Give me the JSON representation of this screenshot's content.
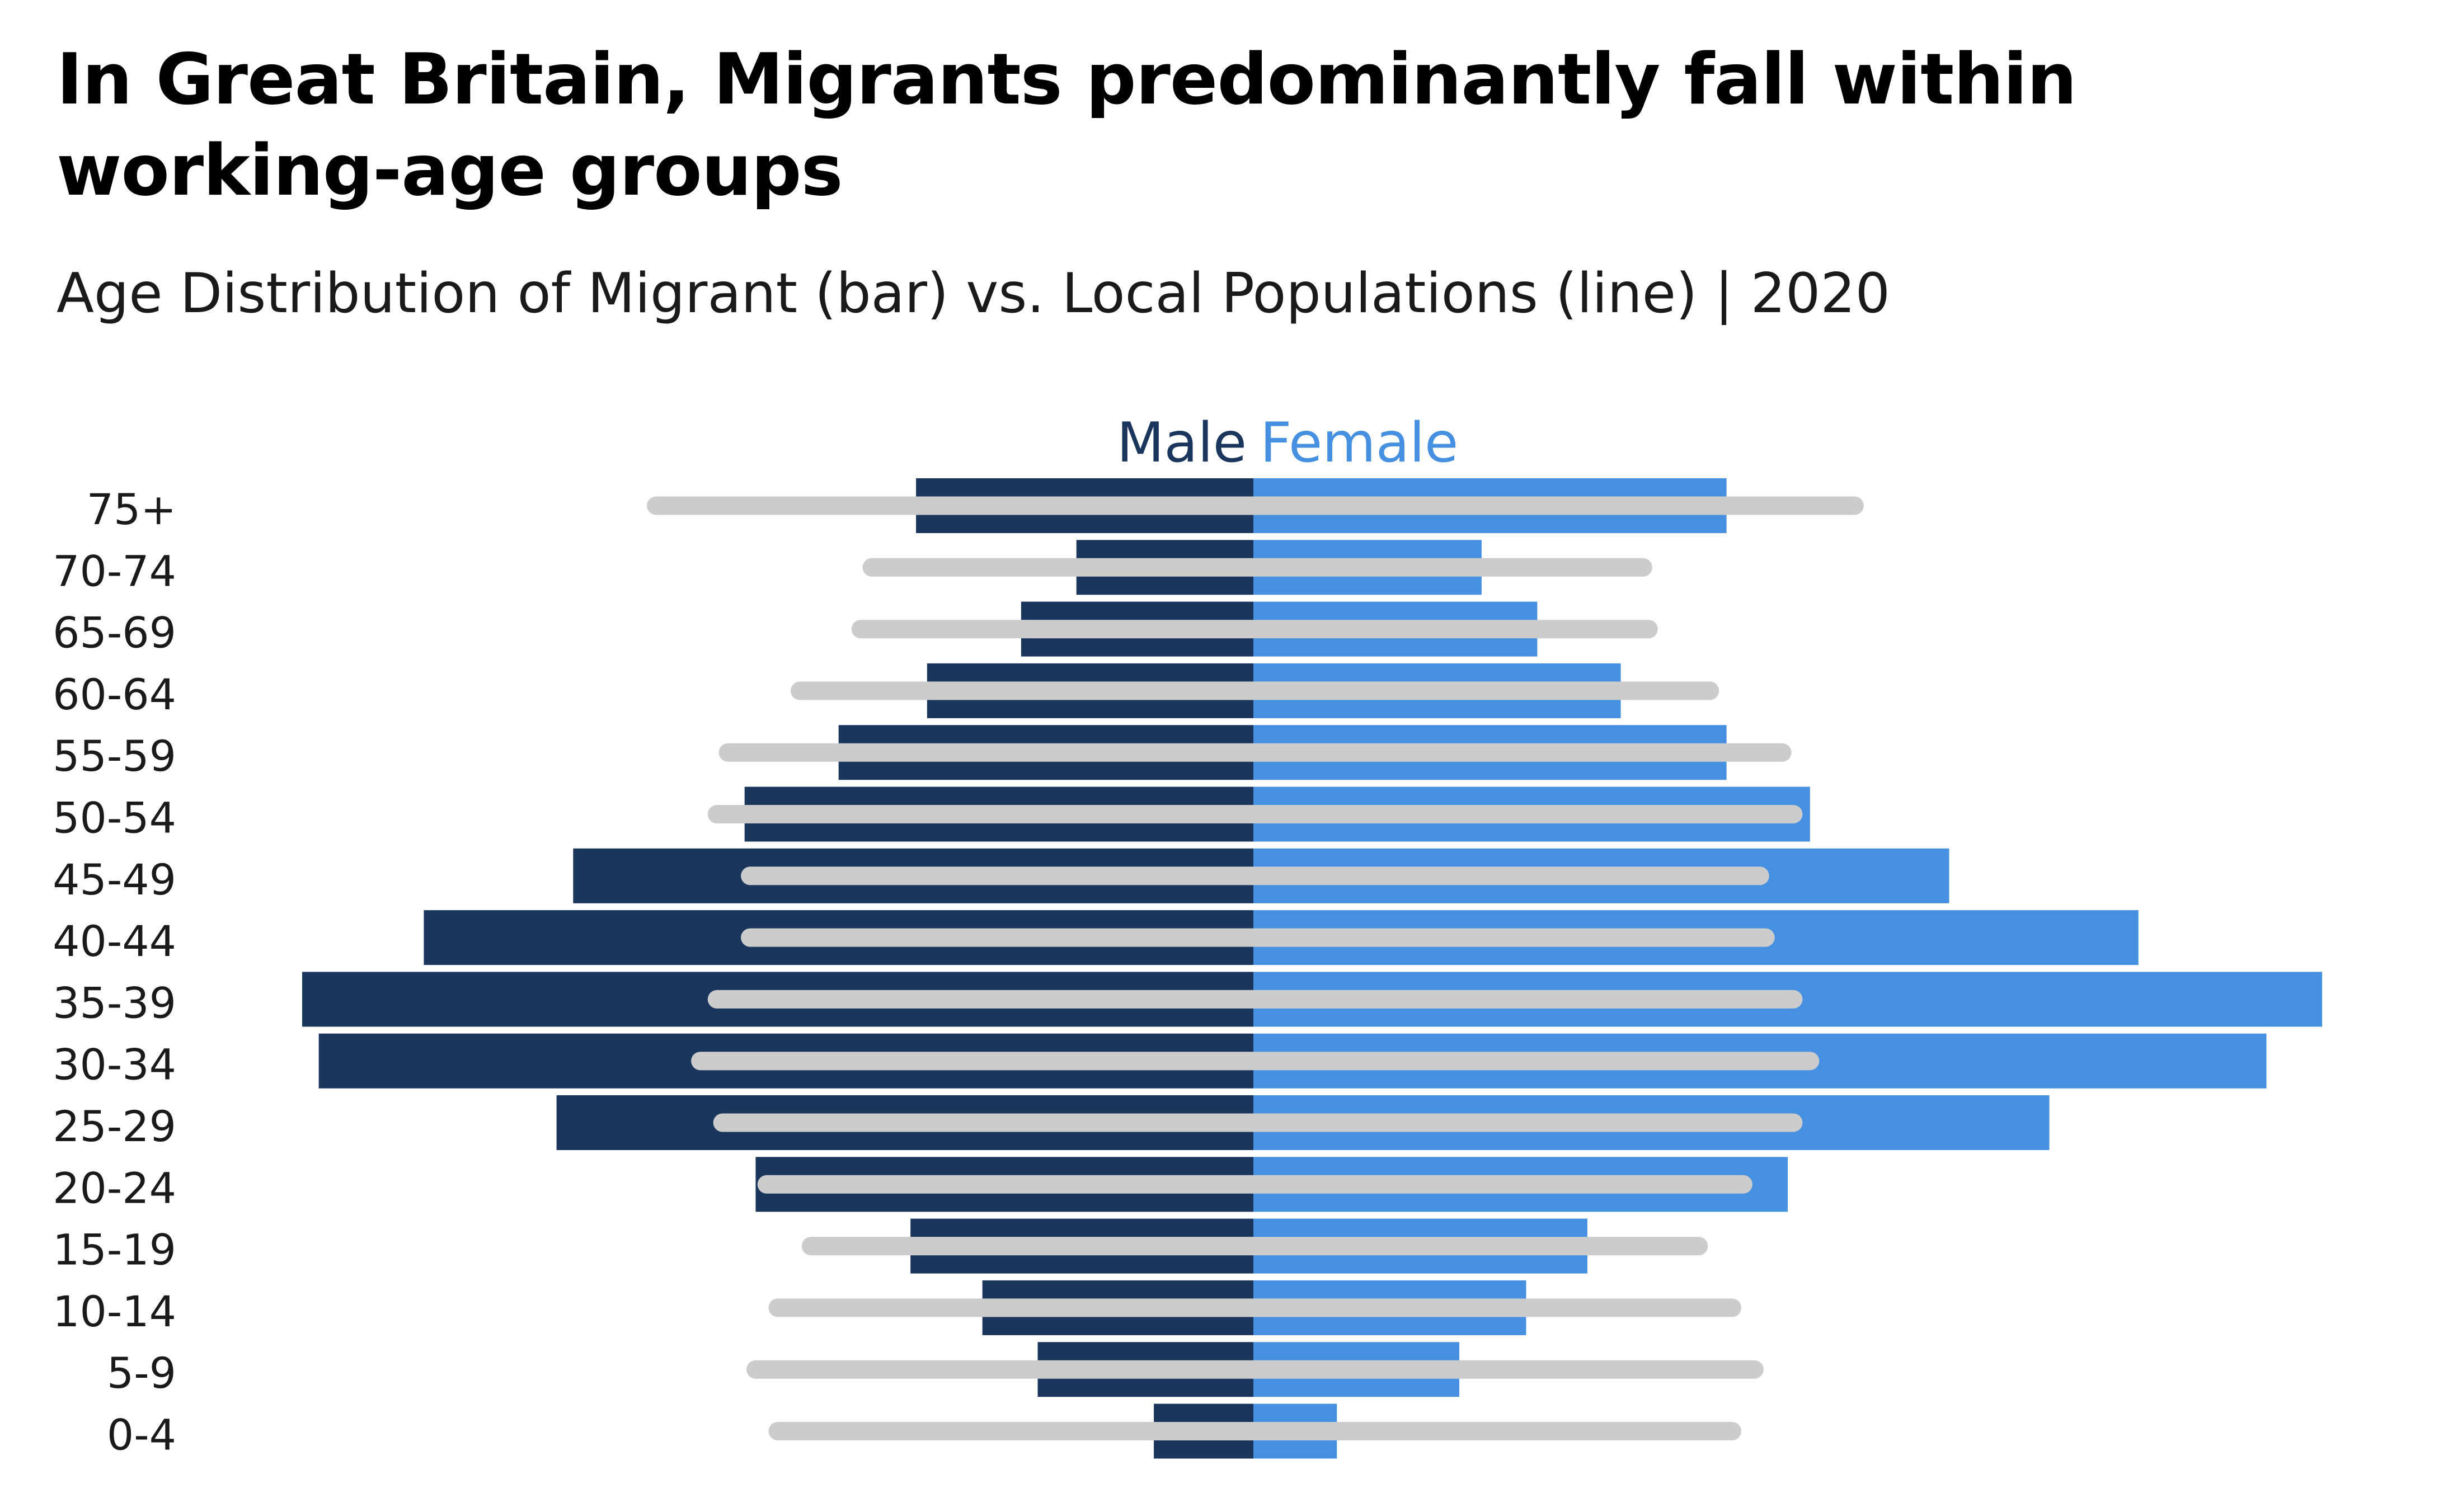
{
  "title": "In Great Britain, Migrants predominantly fall within working-age groups",
  "subtitle": "Age Distribution of Migrant (bar) vs. Local Populations (line) | 2020",
  "colors": {
    "male": "#1b365d",
    "female": "#4590e0",
    "local": "#cccccc"
  },
  "chart_data": {
    "type": "bar",
    "orientation": "horizontal",
    "layout": "population-pyramid",
    "legend": [
      "Male",
      "Female"
    ],
    "categories": [
      "75+",
      "70-74",
      "65-69",
      "60-64",
      "55-59",
      "50-54",
      "45-49",
      "40-44",
      "35-39",
      "30-34",
      "25-29",
      "20-24",
      "15-19",
      "10-14",
      "5-9",
      "0-4"
    ],
    "series": [
      {
        "name": "Male",
        "kind": "migrant bar",
        "values": [
          6.1,
          3.2,
          4.2,
          5.9,
          7.5,
          9.2,
          12.3,
          15.0,
          17.2,
          16.9,
          12.6,
          9.0,
          6.2,
          4.9,
          3.9,
          1.8
        ]
      },
      {
        "name": "Female",
        "kind": "migrant bar",
        "values": [
          8.5,
          4.1,
          5.1,
          6.6,
          8.5,
          10.0,
          12.5,
          15.9,
          19.2,
          18.2,
          14.3,
          9.6,
          6.0,
          4.9,
          3.7,
          1.5
        ]
      },
      {
        "kind": "local line, male side",
        "values": [
          10.8,
          6.9,
          7.1,
          8.2,
          9.5,
          9.7,
          9.1,
          9.1,
          9.7,
          10.0,
          9.6,
          8.8,
          8.0,
          8.6,
          9.0,
          8.6
        ]
      },
      {
        "kind": "local line, female side",
        "values": [
          10.8,
          7.0,
          7.1,
          8.2,
          9.5,
          9.7,
          9.1,
          9.2,
          9.7,
          10.0,
          9.7,
          8.8,
          8.0,
          8.6,
          9.0,
          8.6
        ]
      }
    ],
    "xlim": [
      -17.2,
      19.2
    ],
    "grid": false,
    "axis_ticks": false
  }
}
